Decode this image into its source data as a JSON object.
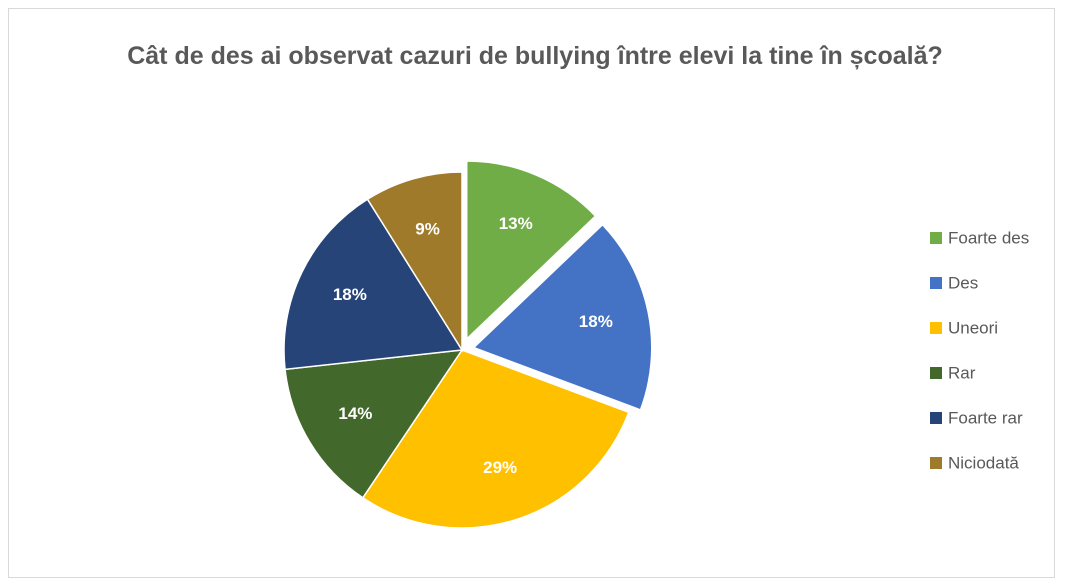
{
  "chart_data": {
    "type": "pie",
    "title": "Cât de des ai observat cazuri de bullying între elevi la tine în școală?",
    "categories": [
      "Foarte des",
      "Des",
      "Uneori",
      "Rar",
      "Foarte rar",
      "Niciodată"
    ],
    "values": [
      13,
      18,
      29,
      14,
      18,
      9
    ],
    "value_labels": [
      "13%",
      "18%",
      "29%",
      "14%",
      "18%",
      "9%"
    ],
    "colors": [
      "#70ad47",
      "#4472c4",
      "#ffc000",
      "#43682b",
      "#264478",
      "#9e7a2a"
    ],
    "exploded": [
      true,
      true,
      false,
      false,
      false,
      false
    ],
    "legend": "right"
  }
}
